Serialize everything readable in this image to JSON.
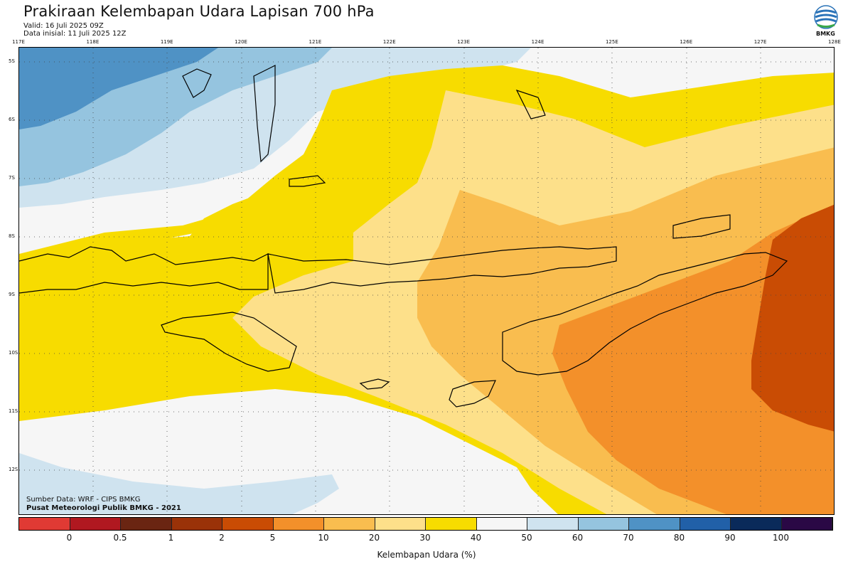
{
  "header": {
    "title": "Prakiraan Kelembapan Udara Lapisan 700 hPa",
    "valid": "Valid: 16 Juli 2025 09Z",
    "initial": "Data inisial: 11 Juli 2025 12Z",
    "logo_text": "BMKG"
  },
  "map": {
    "lon_labels": [
      "117E",
      "118E",
      "119E",
      "120E",
      "121E",
      "122E",
      "123E",
      "124E",
      "125E",
      "126E",
      "127E",
      "128E"
    ],
    "lat_labels": [
      "5S",
      "6S",
      "7S",
      "8S",
      "9S",
      "10S",
      "11S",
      "12S"
    ],
    "source": "Sumber Data: WRF - CIPS BMKG",
    "credit": "Pusat Meteorologi Publik BMKG - 2021"
  },
  "legend": {
    "colors": [
      "#e03a34",
      "#b01820",
      "#6a2512",
      "#9a3208",
      "#c94c04",
      "#f3902a",
      "#f9bd4f",
      "#fde08a",
      "#f7dc00",
      "#f6f6f6",
      "#cfe3ef",
      "#95c4df",
      "#4f92c5",
      "#2160a8",
      "#0a2a5a",
      "#2a0845"
    ],
    "ticks": [
      "0",
      "0.5",
      "1",
      "2",
      "5",
      "10",
      "20",
      "30",
      "40",
      "50",
      "60",
      "70",
      "80",
      "90",
      "100"
    ],
    "unit_label": "Kelembapan Udara (%)"
  }
}
